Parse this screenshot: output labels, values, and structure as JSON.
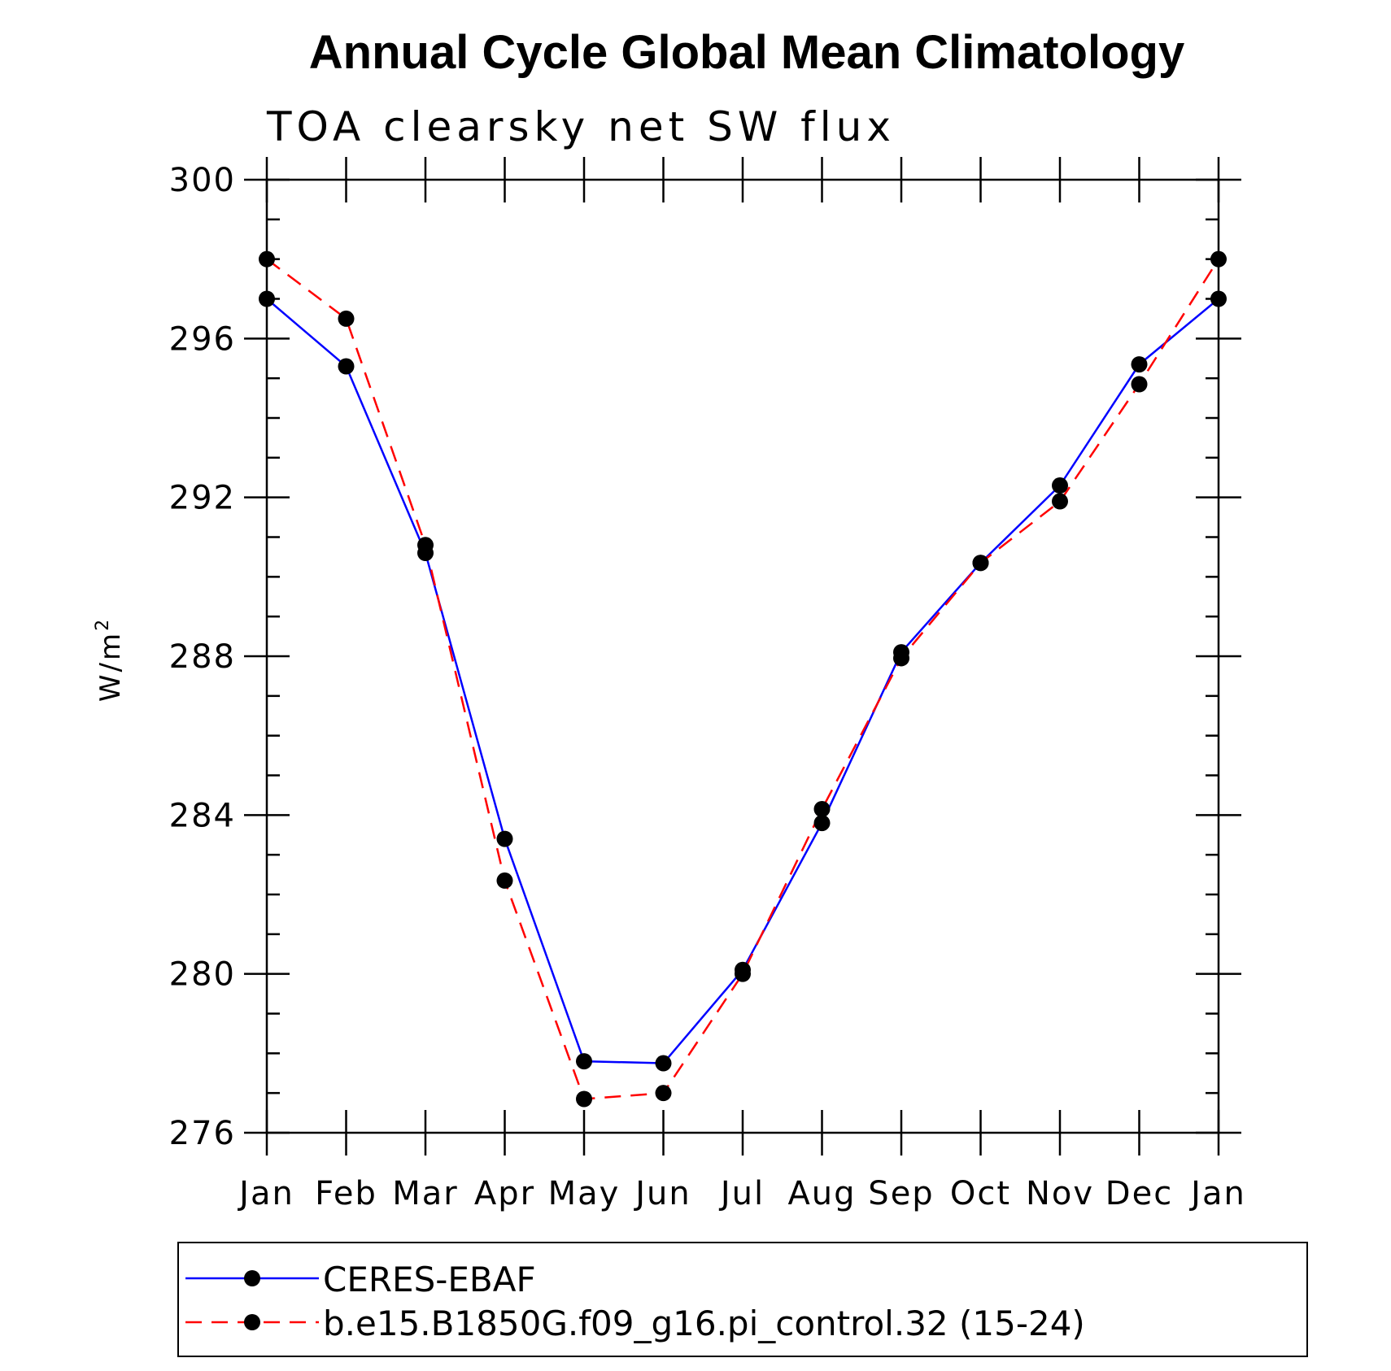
{
  "chart_data": {
    "type": "line",
    "title": "Annual Cycle Global Mean Climatology",
    "subtitle": "TOA clearsky net SW flux",
    "ylabel": "W/m",
    "ylabel_superscript": "2",
    "xlabel": "",
    "categories": [
      "Jan",
      "Feb",
      "Mar",
      "Apr",
      "May",
      "Jun",
      "Jul",
      "Aug",
      "Sep",
      "Oct",
      "Nov",
      "Dec",
      "Jan"
    ],
    "ylim": [
      276,
      300
    ],
    "yticks": [
      276,
      280,
      284,
      288,
      292,
      296,
      300
    ],
    "y_minor_step": 1,
    "legend_position": "bottom",
    "series": [
      {
        "name": "CERES-EBAF",
        "color": "#0000ff",
        "line_style": "solid",
        "marker": "filled-circle",
        "values": [
          297.0,
          295.3,
          290.6,
          283.4,
          277.8,
          277.75,
          280.1,
          283.8,
          288.1,
          290.35,
          292.3,
          295.35,
          297.0
        ]
      },
      {
        "name": "b.e15.B1850G.f09_g16.pi_control.32 (15-24)",
        "color": "#ff0000",
        "line_style": "dashed",
        "marker": "filled-circle",
        "values": [
          298.0,
          296.5,
          290.8,
          282.35,
          276.85,
          277.0,
          280.0,
          284.15,
          287.95,
          290.35,
          291.9,
          294.85,
          298.0
        ]
      }
    ]
  }
}
